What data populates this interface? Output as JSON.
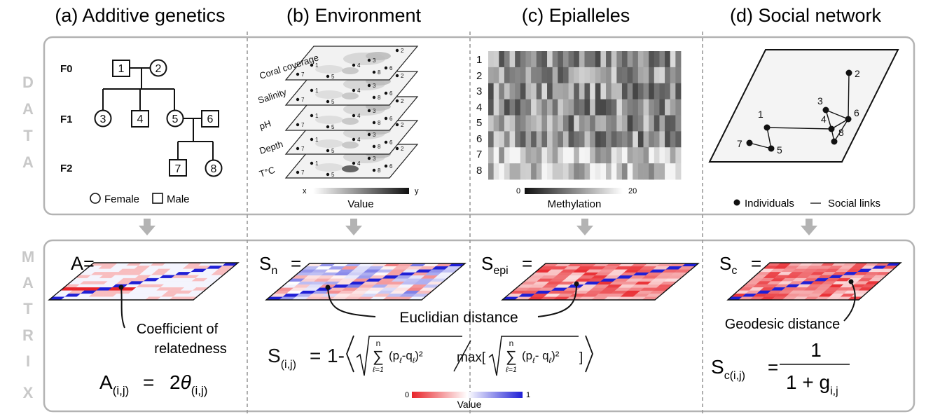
{
  "panels": [
    {
      "title": "(a) Additive genetics"
    },
    {
      "title": "(b) Environment"
    },
    {
      "title": "(c) Epialleles"
    },
    {
      "title": "(d) Social network"
    }
  ],
  "row_labels": {
    "data": [
      "D",
      "A",
      "T",
      "A"
    ],
    "matrix": [
      "M",
      "A",
      "T",
      "R",
      "I",
      "X"
    ]
  },
  "pedigree": {
    "generations": [
      "F0",
      "F1",
      "F2"
    ],
    "individuals": [
      "1",
      "2",
      "3",
      "4",
      "5",
      "6",
      "7",
      "8"
    ],
    "legend": {
      "female": "Female",
      "male": "Male"
    }
  },
  "environment": {
    "layers": [
      "Coral coverage",
      "Salinity",
      "pH",
      "Depth",
      "T°C"
    ],
    "point_labels": [
      "1",
      "2",
      "3",
      "4",
      "5",
      "6",
      "7",
      "8"
    ],
    "colorbar": {
      "min_label": "x",
      "max_label": "y",
      "title": "Value"
    }
  },
  "epialleles": {
    "row_labels": [
      "1",
      "2",
      "3",
      "4",
      "5",
      "6",
      "7",
      "8"
    ],
    "colorbar": {
      "min_label": "0",
      "max_label": "20",
      "title": "Methylation"
    }
  },
  "social": {
    "node_labels": [
      "1",
      "2",
      "3",
      "4",
      "5",
      "6",
      "7",
      "8"
    ],
    "legend": {
      "individuals": "Individuals",
      "links": "Social links"
    }
  },
  "matrices": {
    "a_label": "A=",
    "b_label": "S",
    "b_sub": "n",
    "b_eq": "=",
    "c_label": "S",
    "c_sub": "epi",
    "c_eq": "=",
    "d_label": "S",
    "d_sub": "c",
    "d_eq": "=",
    "coefficient_line1": "Coefficient of",
    "coefficient_line2": "relatedness",
    "euclidian": "Euclidian distance",
    "geodesic": "Geodesic distance"
  },
  "formulas": {
    "a": {
      "lhs": "A",
      "lhs_sub": "(i,j)",
      "eq": "=",
      "coef": "2",
      "theta": "θ",
      "theta_sub": "(i,j)"
    },
    "b": {
      "lhs": "S",
      "lhs_sub": "(i,j)",
      "eq": "=",
      "one_minus": "1-",
      "sum_top": "n",
      "sum_sign": "∑",
      "sum_bottom": "ℓ=1",
      "term_num": "(p",
      "term_l": "ℓ",
      "term_minus": "-q",
      "term_close": ")²",
      "term_den_minus": "- q",
      "max": "max[",
      "max_close": "]"
    },
    "d": {
      "lhs": "S",
      "lhs_sub": "c(i,j)",
      "eq": "=",
      "numerator": "1",
      "denominator": "1 + g",
      "den_sub": "i,j"
    }
  },
  "bottom_colorbar": {
    "min_label": "0",
    "max_label": "1",
    "title": "Value"
  },
  "colors": {
    "frame": "#b3b3b3",
    "red": "#e8242a",
    "blue": "#1f1fd6",
    "row_label": "#c8c8c8"
  }
}
